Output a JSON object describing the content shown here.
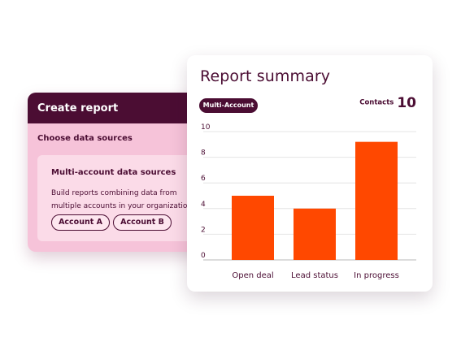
{
  "create_report": {
    "title": "Create report",
    "section_label": "Choose data sources",
    "multi_account": {
      "title": "Multi-account data sources",
      "description": "Build reports combining data from multiple accounts in your organization",
      "accounts": [
        "Account A",
        "Account B"
      ]
    }
  },
  "report_summary": {
    "title": "Report summary",
    "badge": "Multi-Account",
    "contacts_label": "Contacts",
    "contacts_value": "10"
  },
  "colors": {
    "brand_dark": "#4b0d33",
    "bar": "#ff4800",
    "panel_pink": "#f6c3d9"
  },
  "chart_data": {
    "type": "bar",
    "categories": [
      "Open deal",
      "Lead status",
      "In progress"
    ],
    "values": [
      5,
      4,
      9.2
    ],
    "ylim": [
      0,
      10
    ],
    "yticks": [
      0,
      2,
      4,
      6,
      8,
      10
    ],
    "grid": true,
    "title": "",
    "xlabel": "",
    "ylabel": ""
  }
}
